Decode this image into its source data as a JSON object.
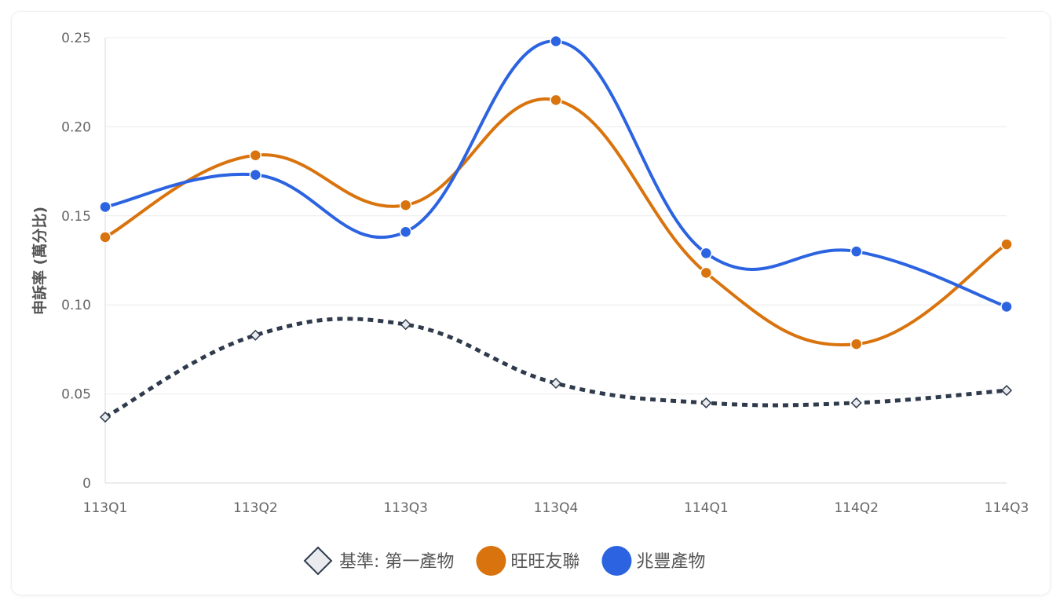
{
  "chart_data": {
    "type": "line",
    "ylabel": "申訴率 (萬分比)",
    "categories": [
      "113Q1",
      "113Q2",
      "113Q3",
      "113Q4",
      "114Q1",
      "114Q2",
      "114Q3"
    ],
    "ylim": [
      0,
      0.25
    ],
    "yticks": [
      0,
      0.05,
      0.1,
      0.15,
      0.2,
      0.25
    ],
    "ytick_labels": [
      "0",
      "0.05",
      "0.10",
      "0.15",
      "0.20",
      "0.25"
    ],
    "grid": true,
    "legend_position": "bottom",
    "series": [
      {
        "name": "基準: 第一產物",
        "values": [
          0.037,
          0.083,
          0.089,
          0.056,
          0.045,
          0.045,
          0.052
        ],
        "color": "#2f3b4c",
        "style": "dashed",
        "marker": "diamond"
      },
      {
        "name": "旺旺友聯",
        "values": [
          0.138,
          0.184,
          0.156,
          0.215,
          0.118,
          0.078,
          0.134
        ],
        "color": "#d9730d",
        "style": "solid",
        "marker": "circle"
      },
      {
        "name": "兆豐產物",
        "values": [
          0.155,
          0.173,
          0.141,
          0.248,
          0.129,
          0.13,
          0.099
        ],
        "color": "#2b63e0",
        "style": "solid",
        "marker": "circle"
      }
    ]
  }
}
